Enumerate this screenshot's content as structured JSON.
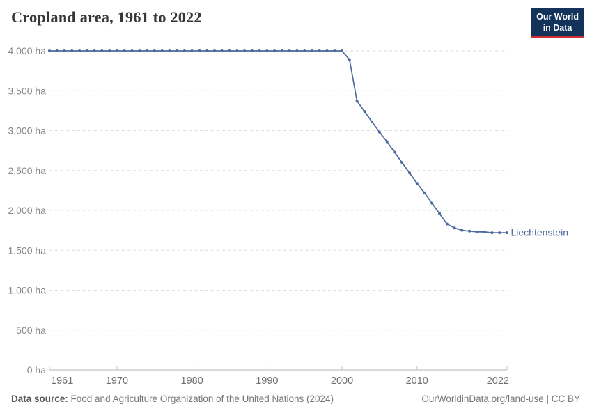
{
  "header": {
    "title": "Cropland area, 1961 to 2022",
    "logo": {
      "line1": "Our World",
      "line2": "in Data"
    }
  },
  "chart_data": {
    "type": "line",
    "title": "Cropland area, 1961 to 2022",
    "unit": "ha",
    "x": [
      1961,
      1962,
      1963,
      1964,
      1965,
      1966,
      1967,
      1968,
      1969,
      1970,
      1971,
      1972,
      1973,
      1974,
      1975,
      1976,
      1977,
      1978,
      1979,
      1980,
      1981,
      1982,
      1983,
      1984,
      1985,
      1986,
      1987,
      1988,
      1989,
      1990,
      1991,
      1992,
      1993,
      1994,
      1995,
      1996,
      1997,
      1998,
      1999,
      2000,
      2001,
      2002,
      2003,
      2004,
      2005,
      2006,
      2007,
      2008,
      2009,
      2010,
      2011,
      2012,
      2013,
      2014,
      2015,
      2016,
      2017,
      2018,
      2019,
      2020,
      2021,
      2022
    ],
    "series": [
      {
        "name": "Liechtenstein",
        "color": "#4C6A9C",
        "values": [
          4000,
          4000,
          4000,
          4000,
          4000,
          4000,
          4000,
          4000,
          4000,
          4000,
          4000,
          4000,
          4000,
          4000,
          4000,
          4000,
          4000,
          4000,
          4000,
          4000,
          4000,
          4000,
          4000,
          4000,
          4000,
          4000,
          4000,
          4000,
          4000,
          4000,
          4000,
          4000,
          4000,
          4000,
          4000,
          4000,
          4000,
          4000,
          4000,
          4000,
          3890,
          3370,
          3240,
          3110,
          2980,
          2860,
          2730,
          2600,
          2470,
          2340,
          2220,
          2090,
          1960,
          1830,
          1780,
          1750,
          1740,
          1730,
          1730,
          1720,
          1720,
          1720
        ]
      }
    ],
    "xlabel": "",
    "ylabel": "",
    "ylim": [
      0,
      4000
    ],
    "yticks": [
      0,
      500,
      1000,
      1500,
      2000,
      2500,
      3000,
      3500,
      4000
    ],
    "ytick_suffix": " ha",
    "xticks": [
      1961,
      1970,
      1980,
      1990,
      2000,
      2010,
      2022
    ],
    "grid": "horizontal-dashed",
    "legend_position": "line-end-label"
  },
  "footer": {
    "source_label": "Data source:",
    "source_text": " Food and Agriculture Organization of the United Nations (2024)",
    "link_text": "OurWorldinData.org/land-use | CC BY"
  },
  "colors": {
    "line": "#4C6A9C",
    "grid": "#dedede",
    "axis": "#b4b4b4",
    "tick": "#c4c4c4",
    "y_label": "#858585",
    "x_label": "#6f6f6f",
    "title": "#373737",
    "footer": "#777777",
    "logo_bg": "#13335a",
    "logo_accent": "#cf2f31"
  }
}
